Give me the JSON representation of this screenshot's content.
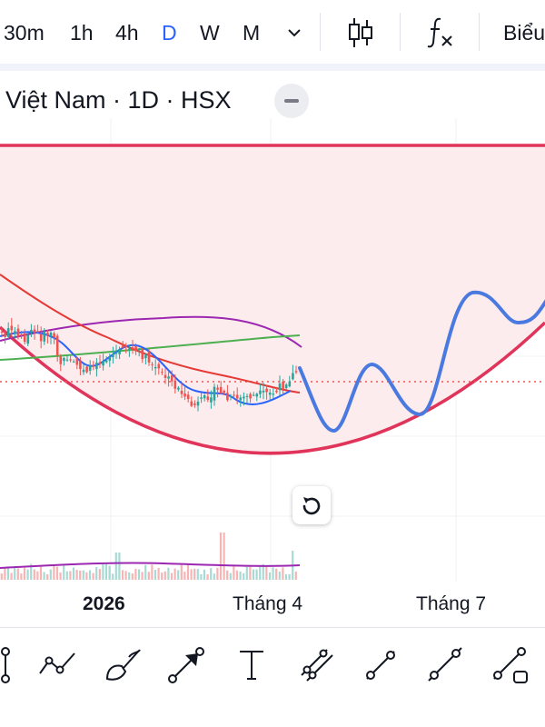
{
  "toolbar": {
    "timeframes": [
      "30m",
      "1h",
      "4h",
      "D",
      "W",
      "M"
    ],
    "active_timeframe": "D",
    "more_label": "Biểu",
    "icons": [
      "chevron-down-icon",
      "candlestick-chart-icon",
      "indicator-fx-icon"
    ]
  },
  "legend": {
    "symbol_text": "Việt Nam · 1D · HSX"
  },
  "chart": {
    "x_axis_labels": [
      "2026",
      "Tháng 4",
      "Tháng 7"
    ],
    "colors": {
      "up": "#26a69a",
      "down": "#ef5350",
      "cup_pattern": "#e0345a",
      "cup_fill": "#fdecee",
      "projection": "#4a7ae0",
      "ma_purple": "#9c27b0",
      "ma_green": "#4caf50",
      "ma_red": "#e53935",
      "ma_blue": "#2962ff"
    },
    "annotation": "cup-and-handle projection drawing"
  },
  "bottom_tools": [
    "vertical-line-icon",
    "polyline-icon",
    "brush-icon",
    "arrow-icon",
    "text-icon",
    "parallel-channel-icon",
    "trend-line-icon",
    "ray-icon",
    "extended-line-icon"
  ]
}
